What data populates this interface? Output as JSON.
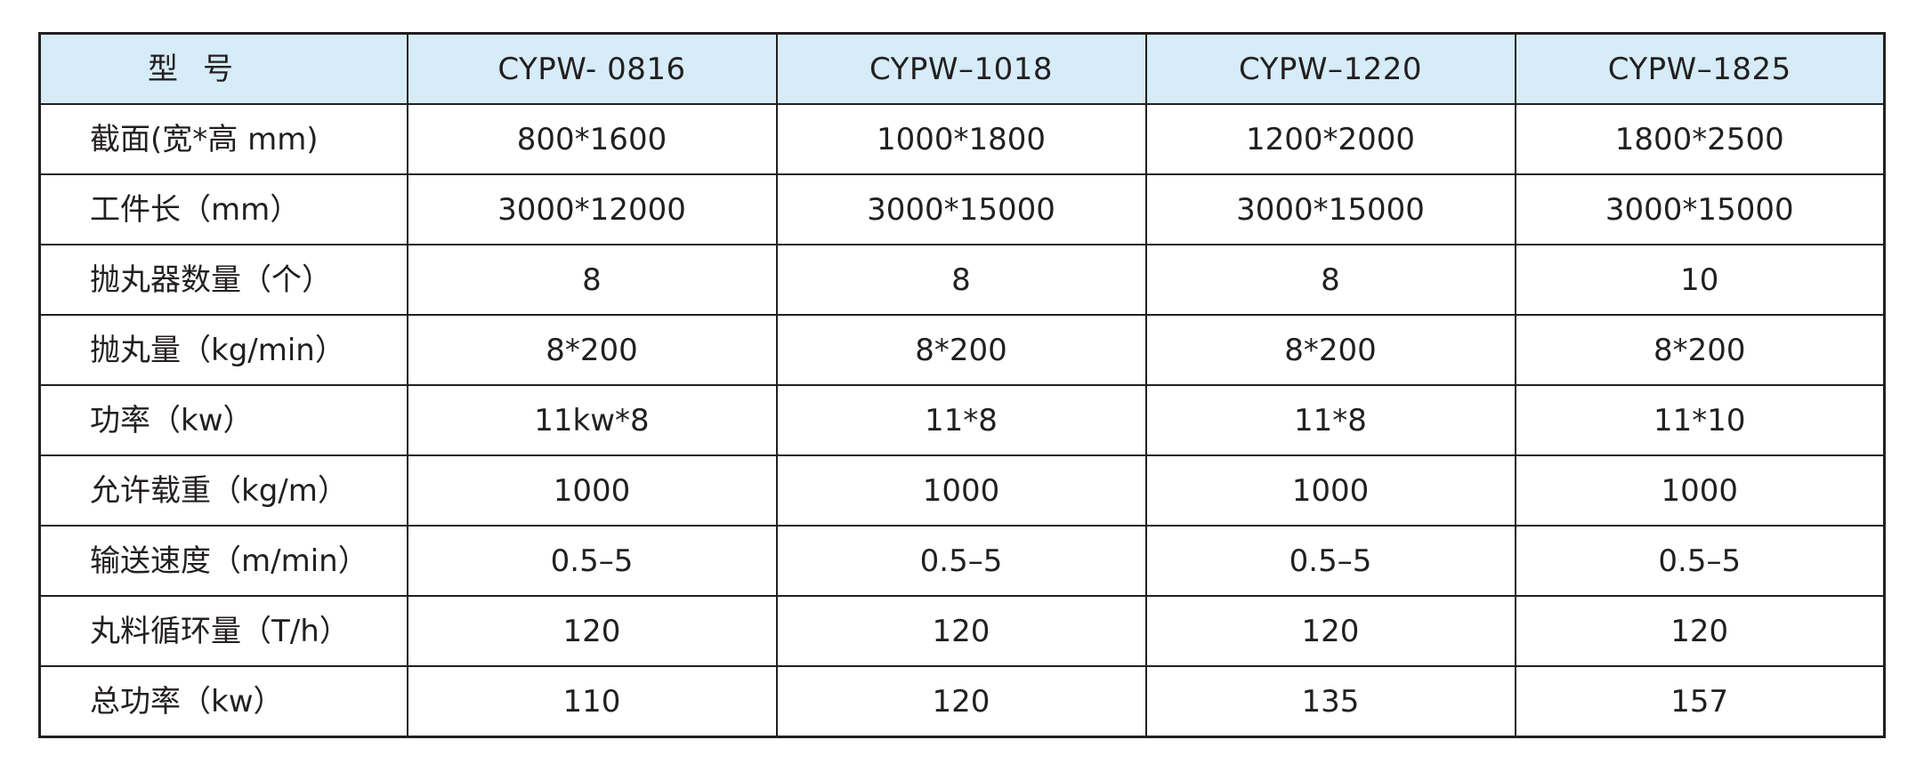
{
  "table": {
    "corner_label": "型号",
    "models": [
      "CYPW- 0816",
      "CYPW–1018",
      "CYPW–1220",
      "CYPW–1825"
    ],
    "rows": [
      {
        "label": "截面(宽*高 mm)",
        "values": [
          "800*1600",
          "1000*1800",
          "1200*2000",
          "1800*2500"
        ]
      },
      {
        "label": "工件长（mm）",
        "values": [
          "3000*12000",
          "3000*15000",
          "3000*15000",
          "3000*15000"
        ]
      },
      {
        "label": "抛丸器数量（个）",
        "values": [
          "8",
          "8",
          "8",
          "10"
        ]
      },
      {
        "label": "抛丸量（kg/min）",
        "values": [
          "8*200",
          "8*200",
          "8*200",
          "8*200"
        ]
      },
      {
        "label": "功率（kw）",
        "values": [
          "11kw*8",
          "11*8",
          "11*8",
          "11*10"
        ]
      },
      {
        "label": "允许载重（kg/m）",
        "values": [
          "1000",
          "1000",
          "1000",
          "1000"
        ]
      },
      {
        "label": "输送速度（m/min）",
        "values": [
          "0.5–5",
          "0.5–5",
          "0.5–5",
          "0.5–5"
        ]
      },
      {
        "label": "丸料循环量（T/h）",
        "values": [
          "120",
          "120",
          "120",
          "120"
        ]
      },
      {
        "label": "总功率（kw）",
        "values": [
          "110",
          "120",
          "135",
          "157"
        ]
      }
    ]
  },
  "colors": {
    "header_background": "#d6ecf8",
    "border": "#231f20",
    "text": "#231f20"
  }
}
